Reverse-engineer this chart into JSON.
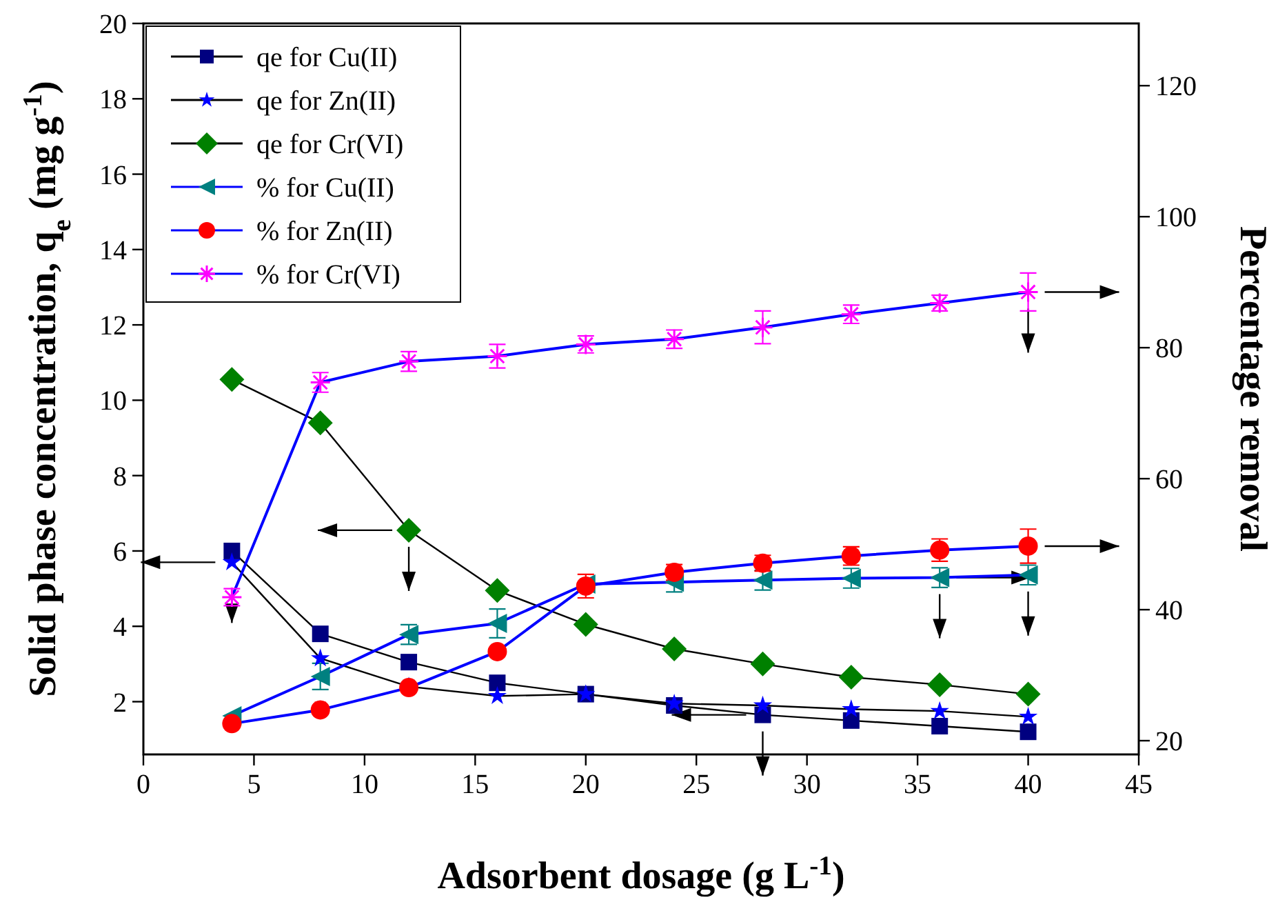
{
  "chart_data": {
    "type": "line",
    "xlabel": "Adsorbent dosage (g L$^{-1}$)",
    "ylabel": "Solid phase concentration, q$_{e}$ (mg g$^{-1}$)",
    "y2label": "Percentage removal",
    "x": [
      4,
      8,
      12,
      16,
      20,
      24,
      28,
      32,
      36,
      40
    ],
    "xlim": [
      0,
      45
    ],
    "xticks": [
      0,
      5,
      10,
      15,
      20,
      25,
      30,
      35,
      40,
      45
    ],
    "ylim": [
      0.6,
      20
    ],
    "yticks": [
      2,
      4,
      6,
      8,
      10,
      12,
      14,
      16,
      18,
      20
    ],
    "y2lim": [
      17.9,
      129.5
    ],
    "y2ticks": [
      20,
      40,
      60,
      80,
      100,
      120
    ],
    "legend": "top left",
    "grid": false,
    "series": [
      {
        "name": "qe for Cu(II)",
        "color": "#000080",
        "marker": "square",
        "values": [
          6.0,
          3.8,
          3.05,
          2.5,
          2.2,
          1.9,
          1.65,
          1.5,
          1.35,
          1.2
        ]
      },
      {
        "name": "qe for Zn(II)",
        "color": "#0000ff",
        "marker": "star",
        "values": [
          5.7,
          3.15,
          2.4,
          2.15,
          2.2,
          1.95,
          1.9,
          1.8,
          1.75,
          1.6
        ]
      },
      {
        "name": "qe for Cr(VI)",
        "color": "#008000",
        "marker": "diamond",
        "values": [
          10.55,
          9.4,
          6.55,
          4.95,
          4.05,
          3.4,
          3.0,
          2.65,
          2.45,
          2.2
        ]
      },
      {
        "name": "% for Cu(II)",
        "color": "#008080",
        "marker": "triangle",
        "axis": "y2",
        "values": [
          23.8,
          29.8,
          36.2,
          37.9,
          43.9,
          44.2,
          44.5,
          44.8,
          44.9,
          45.3
        ],
        "errors": [
          null,
          2,
          1.5,
          2.2,
          null,
          1.5,
          1.5,
          1.5,
          1.5,
          1.5
        ]
      },
      {
        "name": "% for Zn(II)",
        "color": "#ff0000",
        "marker": "circle",
        "axis": "y2",
        "values": [
          22.6,
          24.7,
          28.1,
          33.6,
          43.6,
          45.7,
          47.1,
          48.2,
          49.1,
          49.7
        ],
        "errors": [
          null,
          null,
          null,
          null,
          1.8,
          1.2,
          1.2,
          1.4,
          1.7,
          2.6
        ]
      },
      {
        "name": "% for Cr(VI)",
        "color": "#ff00ff",
        "marker": "cross",
        "axis": "y2",
        "values": [
          41.9,
          74.7,
          77.9,
          78.7,
          80.5,
          81.3,
          83.1,
          85.1,
          86.8,
          88.5
        ],
        "errors": [
          1.3,
          1.5,
          1.5,
          1.8,
          1.3,
          1.4,
          2.5,
          1.4,
          1.2,
          2.9
        ]
      }
    ]
  }
}
